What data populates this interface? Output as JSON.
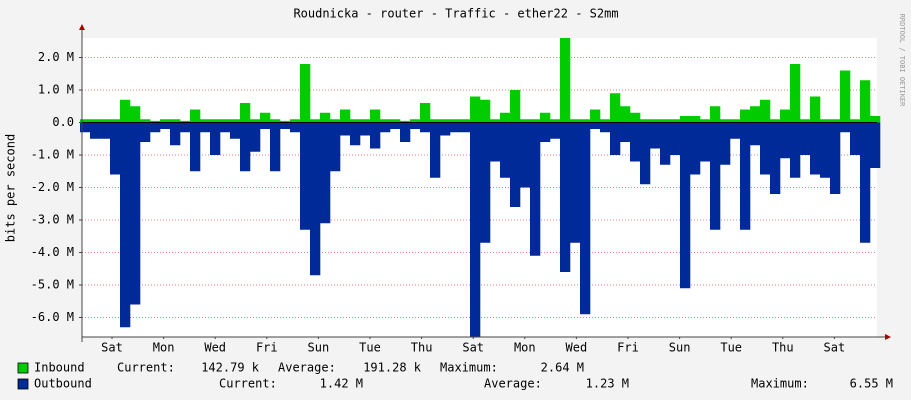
{
  "chart_data": {
    "type": "area",
    "title": "Roudnicka - router - Traffic - ether22 - S2mm",
    "y_label": "bits per second",
    "watermark": "RRDTOOL / TOBI OETIKER",
    "stat_labels": [
      "Current:",
      "Average:",
      "Maximum:"
    ],
    "x": [
      0,
      1,
      2,
      3,
      4,
      5,
      6,
      7,
      8,
      9,
      10,
      11,
      12,
      13,
      14,
      15,
      16,
      17,
      18,
      19,
      20,
      21,
      22,
      23,
      24,
      25,
      26,
      27,
      28,
      29,
      30,
      31,
      32,
      33,
      34,
      35,
      36,
      37,
      38,
      39,
      40,
      41,
      42,
      43,
      44,
      45,
      46,
      47,
      48,
      49,
      50,
      51,
      52,
      53,
      54,
      55,
      56,
      57,
      58,
      59,
      60,
      61,
      62,
      63,
      64,
      65,
      66,
      67,
      68,
      69,
      70,
      71,
      72,
      73,
      74,
      75,
      76,
      77,
      78,
      79
    ],
    "xlim": [
      -0.3,
      79.2
    ],
    "xticks": [
      {
        "value": 2.7,
        "label": "Sat"
      },
      {
        "value": 7.86,
        "label": "Mon"
      },
      {
        "value": 13.02,
        "label": "Wed"
      },
      {
        "value": 18.18,
        "label": "Fri"
      },
      {
        "value": 23.34,
        "label": "Sun"
      },
      {
        "value": 28.5,
        "label": "Tue"
      },
      {
        "value": 33.66,
        "label": "Thu"
      },
      {
        "value": 38.82,
        "label": "Sat"
      },
      {
        "value": 43.98,
        "label": "Mon"
      },
      {
        "value": 49.14,
        "label": "Wed"
      },
      {
        "value": 54.3,
        "label": "Fri"
      },
      {
        "value": 59.46,
        "label": "Sun"
      },
      {
        "value": 64.62,
        "label": "Tue"
      },
      {
        "value": 69.78,
        "label": "Thu"
      },
      {
        "value": 74.94,
        "label": "Sat"
      }
    ],
    "ylim": [
      -6.6,
      2.6
    ],
    "yticks": [
      {
        "value": 2,
        "label": "2.0 M"
      },
      {
        "value": 1,
        "label": "1.0 M"
      },
      {
        "value": 0,
        "label": "0.0"
      },
      {
        "value": -1,
        "label": "-1.0 M"
      },
      {
        "value": -2,
        "label": "-2.0 M"
      },
      {
        "value": -3,
        "label": "-3.0 M"
      },
      {
        "value": -4,
        "label": "-4.0 M"
      },
      {
        "value": -5,
        "label": "-5.0 M"
      },
      {
        "value": -6,
        "label": "-6.0 M"
      }
    ],
    "grid": true,
    "series": [
      {
        "name": "Inbound",
        "color": "#00cc00",
        "current": "142.79 k",
        "average": "191.28 k",
        "maximum": "2.64 M",
        "values": [
          0.1,
          0.1,
          0.1,
          0.1,
          0.7,
          0.5,
          0.1,
          0.05,
          0.1,
          0.1,
          0.05,
          0.4,
          0.1,
          0.1,
          0.1,
          0.1,
          0.6,
          0.1,
          0.3,
          0.1,
          0.05,
          0.1,
          1.8,
          0.1,
          0.3,
          0.1,
          0.4,
          0.1,
          0.1,
          0.4,
          0.1,
          0.1,
          0.05,
          0.1,
          0.6,
          0.1,
          0.1,
          0.1,
          0.1,
          0.8,
          0.7,
          0.1,
          0.3,
          1.0,
          0.1,
          0.1,
          0.3,
          0.1,
          2.6,
          0.1,
          0.1,
          0.4,
          0.1,
          0.9,
          0.5,
          0.3,
          0.1,
          0.1,
          0.1,
          0.1,
          0.2,
          0.2,
          0.1,
          0.5,
          0.1,
          0.1,
          0.4,
          0.5,
          0.7,
          0.1,
          0.4,
          1.8,
          0.1,
          0.8,
          0.1,
          0.1,
          1.6,
          0.1,
          1.3,
          0.2
        ]
      },
      {
        "name": "Outbound",
        "color": "#002a97",
        "current": "1.42 M",
        "average": "1.23 M",
        "maximum": "6.55 M",
        "values": [
          -0.3,
          -0.5,
          -0.5,
          -1.6,
          -6.3,
          -5.6,
          -0.6,
          -0.3,
          -0.2,
          -0.7,
          -0.3,
          -1.5,
          -0.3,
          -1.0,
          -0.3,
          -0.5,
          -1.5,
          -0.9,
          -0.2,
          -1.5,
          -0.2,
          -0.3,
          -3.3,
          -4.7,
          -3.1,
          -1.5,
          -0.4,
          -0.7,
          -0.4,
          -0.8,
          -0.3,
          -0.2,
          -0.6,
          -0.2,
          -0.3,
          -1.7,
          -0.4,
          -0.3,
          -0.3,
          -6.6,
          -3.7,
          -1.2,
          -1.7,
          -2.6,
          -2.0,
          -4.1,
          -0.6,
          -0.5,
          -4.6,
          -3.7,
          -5.9,
          -0.2,
          -0.3,
          -1.0,
          -0.6,
          -1.2,
          -1.9,
          -0.8,
          -1.3,
          -1.0,
          -5.1,
          -1.6,
          -1.2,
          -3.3,
          -1.3,
          -0.5,
          -3.3,
          -0.7,
          -1.6,
          -2.2,
          -1.1,
          -1.7,
          -1.0,
          -1.6,
          -1.7,
          -2.2,
          -0.3,
          -1.0,
          -3.7,
          -1.4
        ]
      }
    ]
  }
}
